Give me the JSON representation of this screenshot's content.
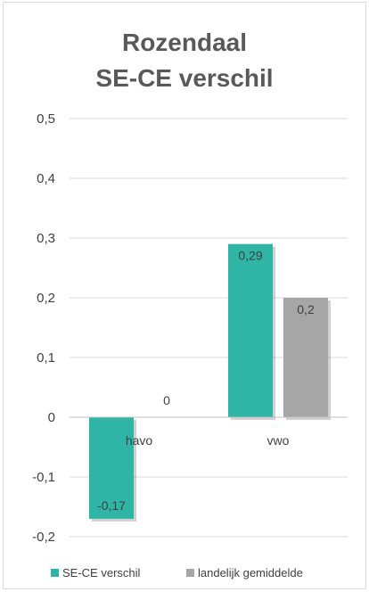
{
  "chart_data": {
    "type": "bar",
    "title_lines": [
      "Rozendaal",
      "SE-CE verschil"
    ],
    "categories": [
      "havo",
      "vwo"
    ],
    "series": [
      {
        "name": "SE-CE verschil",
        "values": [
          -0.17,
          0.29
        ],
        "value_labels": [
          "-0,17",
          "0,29"
        ],
        "color": "#2fb5a5"
      },
      {
        "name": "landelijk gemiddelde",
        "values": [
          0,
          0.2
        ],
        "value_labels": [
          "0",
          "0,2"
        ],
        "color": "#a6a6a6"
      }
    ],
    "ylim": [
      -0.2,
      0.5
    ],
    "yticks": [
      0.5,
      0.4,
      0.3,
      0.2,
      0.1,
      0,
      -0.1,
      -0.2
    ],
    "ytick_labels": [
      "0,5",
      "0,4",
      "0,3",
      "0,2",
      "0,1",
      "0",
      "-0,1",
      "-0,2"
    ],
    "grid": true,
    "legend": "bottom"
  }
}
